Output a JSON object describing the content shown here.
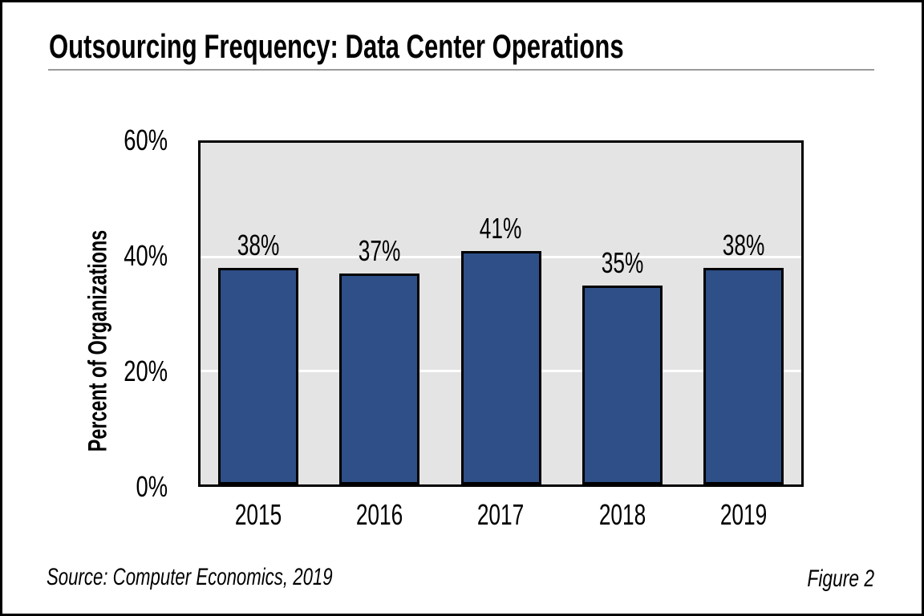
{
  "figure": {
    "title": "Outsourcing Frequency: Data Center Operations",
    "source_note": "Source: Computer Economics, 2019",
    "figure_label": "Figure 2"
  },
  "chart_data": {
    "type": "bar",
    "title": "Outsourcing Frequency: Data Center Operations",
    "categories": [
      "2015",
      "2016",
      "2017",
      "2018",
      "2019"
    ],
    "values": [
      38,
      37,
      41,
      35,
      38
    ],
    "value_labels": [
      "38%",
      "37%",
      "41%",
      "35%",
      "38%"
    ],
    "xlabel": "",
    "ylabel": "Percent of Organizations",
    "ylim": [
      0,
      60
    ],
    "yticks": [
      {
        "value": 0,
        "label": "0%"
      },
      {
        "value": 20,
        "label": "20%"
      },
      {
        "value": 40,
        "label": "40%"
      },
      {
        "value": 60,
        "label": "60%"
      }
    ],
    "gridlines": [
      20,
      40
    ],
    "grid": "on",
    "legend": "none",
    "colors": {
      "bar_fill": "#2e4f87",
      "bar_border": "#000000",
      "plot_background": "#e4e4e4",
      "gridline": "#ffffff",
      "text": "#000000",
      "title_underline": "#9a9a9a"
    }
  }
}
